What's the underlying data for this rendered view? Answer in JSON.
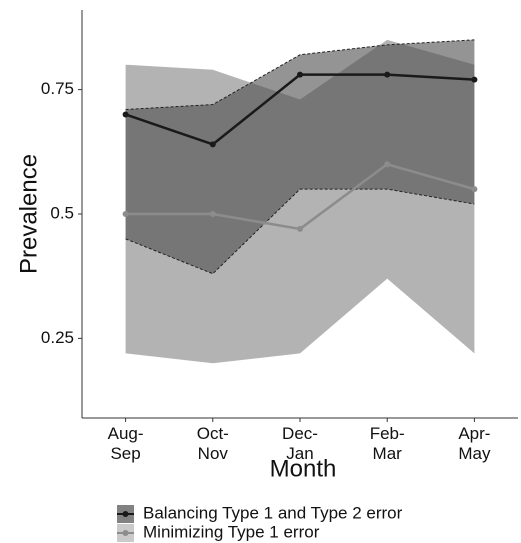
{
  "chart_data": {
    "type": "line_ribbon",
    "x_label": "Month",
    "y_label": "Prevalence",
    "categories": [
      "Aug-\nSep",
      "Oct-\nNov",
      "Dec-\nJan",
      "Feb-\nMar",
      "Apr-\nMay"
    ],
    "ylim": [
      0.09,
      0.91
    ],
    "yticks": [
      0.25,
      0.5,
      0.75
    ],
    "series": [
      {
        "name": "Minimizing Type 1 error",
        "color": "#8c8c8c",
        "ribbon_color": "#b3b3b3",
        "values": [
          0.5,
          0.5,
          0.47,
          0.6,
          0.55
        ],
        "lower": [
          0.22,
          0.2,
          0.22,
          0.37,
          0.22
        ],
        "upper": [
          0.8,
          0.79,
          0.73,
          0.85,
          0.8
        ]
      },
      {
        "name": "Balancing Type 1 and Type 2 error",
        "color": "#1a1a1a",
        "ribbon_color": "#4d4d4d",
        "values": [
          0.7,
          0.64,
          0.78,
          0.78,
          0.77
        ],
        "lower": [
          0.45,
          0.38,
          0.55,
          0.55,
          0.52
        ],
        "upper": [
          0.71,
          0.72,
          0.82,
          0.84,
          0.85
        ]
      }
    ]
  }
}
